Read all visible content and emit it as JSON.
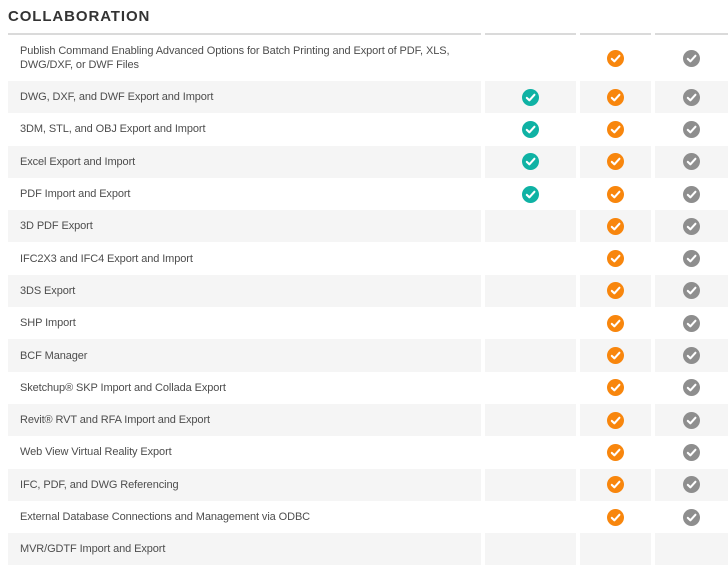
{
  "section": {
    "title": "COLLABORATION"
  },
  "table": {
    "columns": [
      {
        "id": "column-1",
        "check_color": "teal"
      },
      {
        "id": "column-2",
        "check_color": "orange"
      },
      {
        "id": "column-3",
        "check_color": "gray"
      }
    ],
    "rows": [
      {
        "label": "Publish Command Enabling Advanced Options for Batch Printing and Export of PDF, XLS, DWG/DXF, or DWF Files",
        "checks": [
          false,
          true,
          true
        ]
      },
      {
        "label": "DWG, DXF, and DWF Export and Import",
        "checks": [
          true,
          true,
          true
        ]
      },
      {
        "label": "3DM, STL, and OBJ Export and Import",
        "checks": [
          true,
          true,
          true
        ]
      },
      {
        "label": "Excel Export and Import",
        "checks": [
          true,
          true,
          true
        ]
      },
      {
        "label": "PDF Import and Export",
        "checks": [
          true,
          true,
          true
        ]
      },
      {
        "label": "3D PDF Export",
        "checks": [
          false,
          true,
          true
        ]
      },
      {
        "label": "IFC2X3 and IFC4 Export and Import",
        "checks": [
          false,
          true,
          true
        ]
      },
      {
        "label": "3DS Export",
        "checks": [
          false,
          true,
          true
        ]
      },
      {
        "label": "SHP Import",
        "checks": [
          false,
          true,
          true
        ]
      },
      {
        "label": "BCF Manager",
        "checks": [
          false,
          true,
          true
        ]
      },
      {
        "label": "Sketchup® SKP Import and Collada Export",
        "checks": [
          false,
          true,
          true
        ]
      },
      {
        "label": "Revit® RVT and RFA Import and Export",
        "checks": [
          false,
          true,
          true
        ]
      },
      {
        "label": "Web View Virtual Reality Export",
        "checks": [
          false,
          true,
          true
        ]
      },
      {
        "label": "IFC, PDF, and DWG Referencing",
        "checks": [
          false,
          true,
          true
        ]
      },
      {
        "label": "External Database Connections and Management via ODBC",
        "checks": [
          false,
          true,
          true
        ]
      },
      {
        "label": "MVR/GDTF Import and Export",
        "checks": [
          false,
          false,
          false
        ]
      }
    ]
  },
  "colors": {
    "teal": "#0FB2A4",
    "orange": "#F8860D",
    "gray": "#8E8E8E",
    "row_alt_bg": "#F5F5F5",
    "border": "#DADADA",
    "title_text": "#333333",
    "feature_text": "#4D4D4D"
  }
}
